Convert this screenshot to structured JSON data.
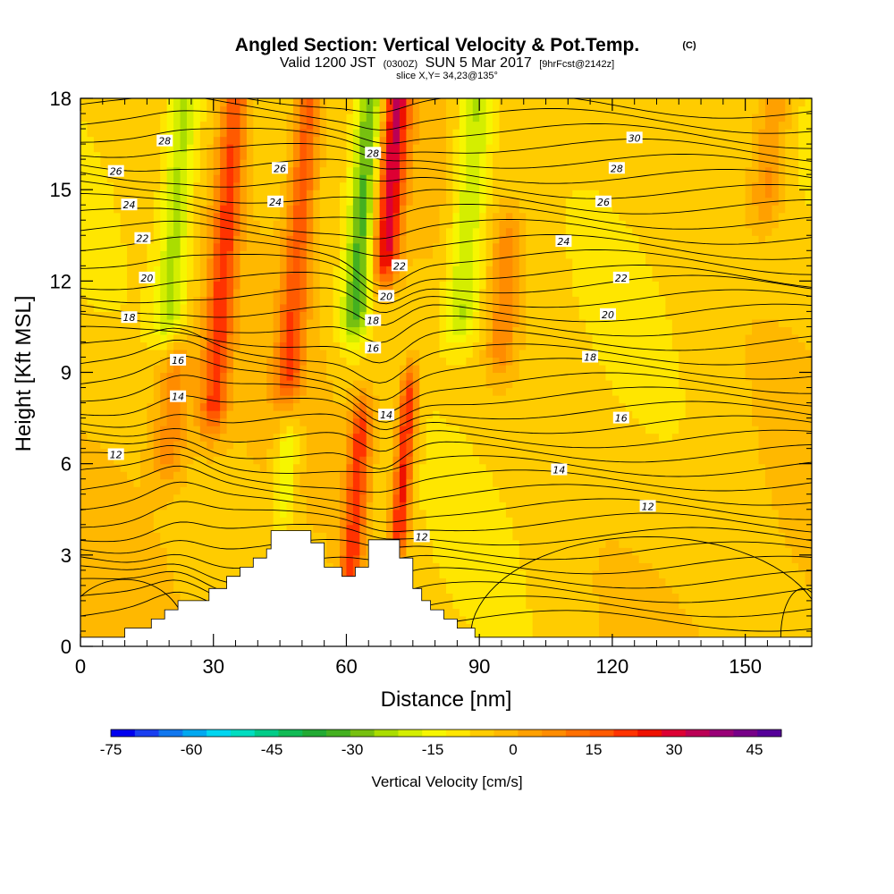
{
  "chart_data": {
    "type": "heatmap",
    "title": "Angled Section: Vertical Velocity & Pot.Temp.",
    "title_unit": "(C)",
    "subtitle": {
      "valid_prefix": "Valid 1200 JST",
      "utc": "(0300Z)",
      "date": "SUN 5 Mar 2017",
      "forecast": "[9hrFcst@2142z]"
    },
    "slice": "slice X,Y= 34,23@135°",
    "xlabel": "Distance [nm]",
    "ylabel": "Height [Kft MSL]",
    "xlim": [
      0,
      165
    ],
    "ylim": [
      0,
      18
    ],
    "x_ticks": [
      "0",
      "30",
      "60",
      "90",
      "120",
      "150"
    ],
    "y_ticks": [
      "0",
      "3",
      "6",
      "9",
      "12",
      "15",
      "18"
    ],
    "colorbar": {
      "label": "Vertical Velocity [cm/s]",
      "tick_labels": [
        "-75",
        "-60",
        "-45",
        "-30",
        "-15",
        "0",
        "15",
        "30",
        "45"
      ],
      "range": [
        -75,
        50
      ],
      "step": 5,
      "colors": [
        "#0000ee",
        "#1a3ff0",
        "#1177ee",
        "#00a8f0",
        "#00d6f0",
        "#00ddc0",
        "#00cc88",
        "#11bb55",
        "#22aa33",
        "#44b020",
        "#77c010",
        "#aadd00",
        "#d4ee00",
        "#f6f600",
        "#ffe600",
        "#ffcc00",
        "#ffb800",
        "#ffa000",
        "#ff8c00",
        "#ff7000",
        "#ff5a00",
        "#ff3300",
        "#ee1100",
        "#dd0033",
        "#bb0055",
        "#990077",
        "#770088",
        "#550099"
      ]
    },
    "isentropes": {
      "variable": "Pot.Temp.",
      "unit": "C",
      "labels": [
        {
          "value": "12",
          "x": 8,
          "y": 6.3
        },
        {
          "value": "14",
          "x": 22,
          "y": 8.2
        },
        {
          "value": "16",
          "x": 22,
          "y": 9.4
        },
        {
          "value": "18",
          "x": 11,
          "y": 10.8
        },
        {
          "value": "20",
          "x": 15,
          "y": 12.1
        },
        {
          "value": "22",
          "x": 14,
          "y": 13.4
        },
        {
          "value": "24",
          "x": 11,
          "y": 14.5
        },
        {
          "value": "26",
          "x": 8,
          "y": 15.6
        },
        {
          "value": "28",
          "x": 19,
          "y": 16.6
        },
        {
          "value": "26",
          "x": 45,
          "y": 15.7
        },
        {
          "value": "24",
          "x": 44,
          "y": 14.6
        },
        {
          "value": "28",
          "x": 66,
          "y": 16.2
        },
        {
          "value": "22",
          "x": 72,
          "y": 12.5
        },
        {
          "value": "20",
          "x": 69,
          "y": 11.5
        },
        {
          "value": "18",
          "x": 66,
          "y": 10.7
        },
        {
          "value": "16",
          "x": 66,
          "y": 9.8
        },
        {
          "value": "14",
          "x": 69,
          "y": 7.6
        },
        {
          "value": "12",
          "x": 77,
          "y": 3.6
        },
        {
          "value": "30",
          "x": 125,
          "y": 16.7
        },
        {
          "value": "28",
          "x": 121,
          "y": 15.7
        },
        {
          "value": "26",
          "x": 118,
          "y": 14.6
        },
        {
          "value": "24",
          "x": 109,
          "y": 13.3
        },
        {
          "value": "22",
          "x": 122,
          "y": 12.1
        },
        {
          "value": "20",
          "x": 119,
          "y": 10.9
        },
        {
          "value": "18",
          "x": 115,
          "y": 9.5
        },
        {
          "value": "16",
          "x": 122,
          "y": 7.5
        },
        {
          "value": "14",
          "x": 108,
          "y": 5.8
        },
        {
          "value": "12",
          "x": 128,
          "y": 4.6
        }
      ]
    },
    "terrain_profile": [
      [
        0,
        0.3
      ],
      [
        10,
        0.3
      ],
      [
        10,
        0.6
      ],
      [
        16,
        0.6
      ],
      [
        16,
        0.9
      ],
      [
        19,
        0.9
      ],
      [
        19,
        1.2
      ],
      [
        22,
        1.2
      ],
      [
        22,
        1.5
      ],
      [
        29,
        1.5
      ],
      [
        29,
        1.9
      ],
      [
        33,
        1.9
      ],
      [
        33,
        2.3
      ],
      [
        36,
        2.3
      ],
      [
        36,
        2.6
      ],
      [
        39,
        2.6
      ],
      [
        39,
        2.9
      ],
      [
        42,
        2.9
      ],
      [
        42,
        3.2
      ],
      [
        43,
        3.2
      ],
      [
        43,
        3.8
      ],
      [
        52,
        3.8
      ],
      [
        52,
        3.4
      ],
      [
        55,
        3.4
      ],
      [
        55,
        2.6
      ],
      [
        59,
        2.6
      ],
      [
        59,
        2.3
      ],
      [
        62,
        2.3
      ],
      [
        62,
        2.6
      ],
      [
        65,
        2.6
      ],
      [
        65,
        3.5
      ],
      [
        72,
        3.5
      ],
      [
        72,
        2.9
      ],
      [
        75,
        2.9
      ],
      [
        75,
        1.9
      ],
      [
        77,
        1.9
      ],
      [
        77,
        1.5
      ],
      [
        79,
        1.5
      ],
      [
        79,
        1.2
      ],
      [
        82,
        1.2
      ],
      [
        82,
        0.9
      ],
      [
        85,
        0.9
      ],
      [
        85,
        0.6
      ],
      [
        89,
        0.6
      ],
      [
        89,
        0.3
      ],
      [
        165,
        0.3
      ]
    ],
    "velocity_features": [
      {
        "x": 30,
        "z0": 8,
        "z1": 18,
        "w": 3,
        "v": 28
      },
      {
        "x": 20,
        "z0": 11,
        "z1": 18,
        "w": 3.5,
        "v": -20
      },
      {
        "x": 47,
        "z0": 9,
        "z1": 18,
        "w": 3,
        "v": 25
      },
      {
        "x": 62,
        "z0": 11,
        "z1": 18,
        "w": 3.2,
        "v": -30
      },
      {
        "x": 69,
        "z0": 13,
        "z1": 18,
        "w": 3,
        "v": 40
      },
      {
        "x": 86,
        "z0": 11,
        "z1": 18,
        "w": 4,
        "v": -20
      },
      {
        "x": 61,
        "z0": 2.5,
        "z1": 7,
        "w": 2.5,
        "v": 30
      },
      {
        "x": 72,
        "z0": 4,
        "z1": 8,
        "w": 2,
        "v": 35
      },
      {
        "x": 46,
        "z0": 5,
        "z1": 6.5,
        "w": 2.5,
        "v": -15
      },
      {
        "x": 20,
        "z0": 6.5,
        "z1": 9,
        "w": 4,
        "v": 15
      },
      {
        "x": 95,
        "z0": 10,
        "z1": 13,
        "w": 3,
        "v": 15
      },
      {
        "x": 155,
        "z0": 15,
        "z1": 18,
        "w": 4,
        "v": 15
      }
    ]
  }
}
